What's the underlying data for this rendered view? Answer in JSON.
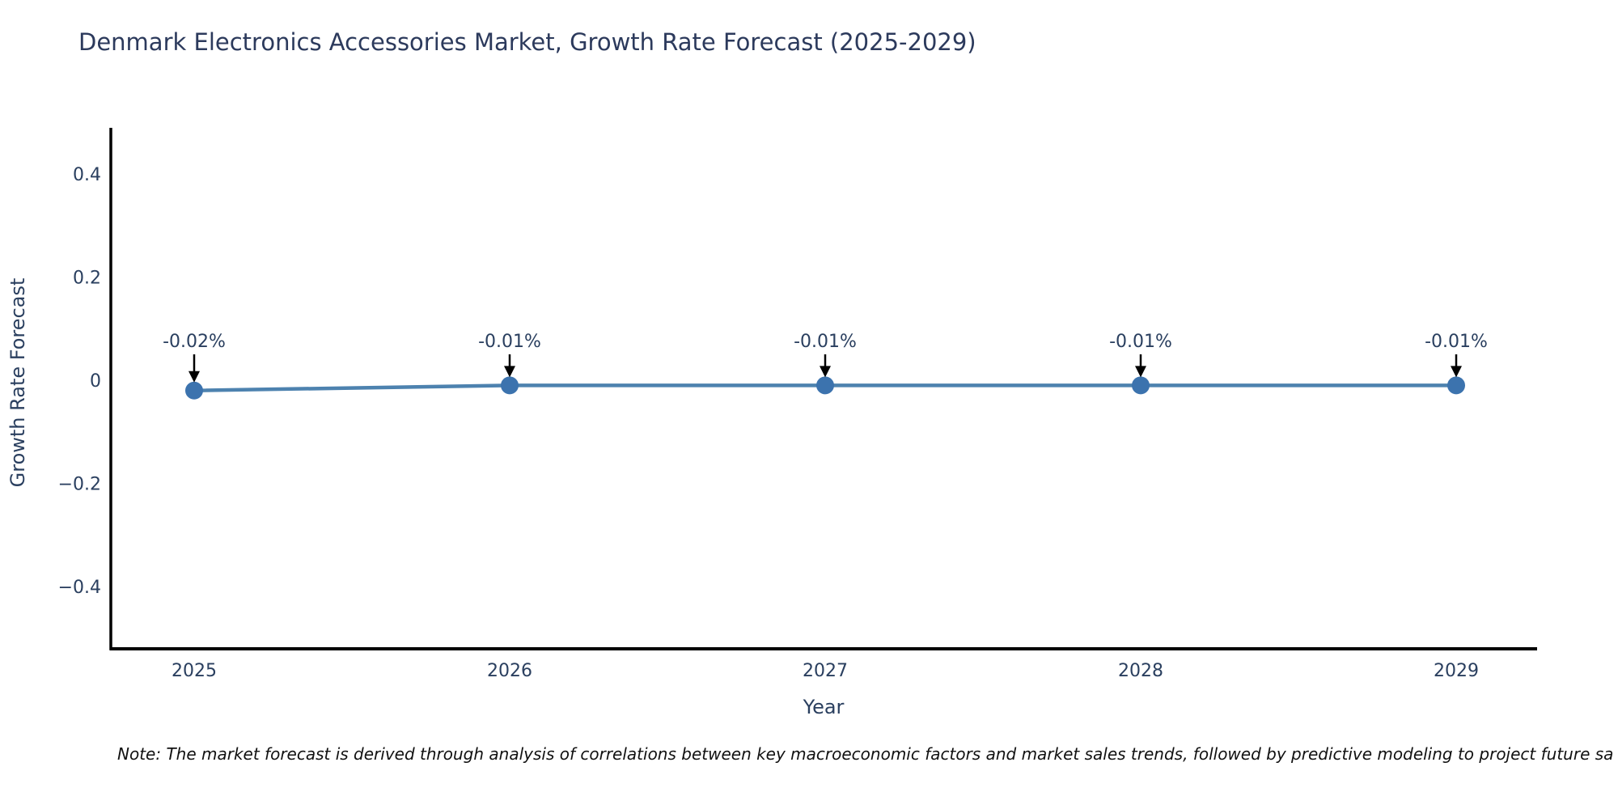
{
  "title": "Denmark Electronics Accessories Market, Growth Rate Forecast (2025-2029)",
  "note": "Note: The market forecast is derived through analysis of correlations between key macroeconomic factors and market sales trends, followed by predictive modeling to project future sa",
  "chart_data": {
    "type": "line",
    "title": "Denmark Electronics Accessories Market, Growth Rate Forecast (2025-2029)",
    "xlabel": "Year",
    "ylabel": "Growth Rate Forecast",
    "x": [
      2025,
      2026,
      2027,
      2028,
      2029
    ],
    "x_tick_labels": [
      "2025",
      "2026",
      "2027",
      "2028",
      "2029"
    ],
    "values": [
      -0.02,
      -0.01,
      -0.01,
      -0.01,
      -0.01
    ],
    "point_labels": [
      "-0.02%",
      "-0.01%",
      "-0.01%",
      "-0.01%",
      "-0.01%"
    ],
    "y_ticks": [
      0.4,
      0.2,
      0,
      -0.2,
      -0.4
    ],
    "y_tick_labels": [
      "0.4",
      "0.2",
      "0",
      "−0.2",
      "−0.4"
    ],
    "ylim": [
      -0.52,
      0.49
    ],
    "grid": false,
    "legend_position": "none",
    "annotation_style": "black-down-arrows",
    "colors": {
      "line": "#4d82af",
      "marker": "#3c73ae",
      "axis": "#000000",
      "arrow": "#000000",
      "tick_text": "#2a3f5f",
      "title_text": "#2c3a5c",
      "note_text": "#111111"
    }
  }
}
